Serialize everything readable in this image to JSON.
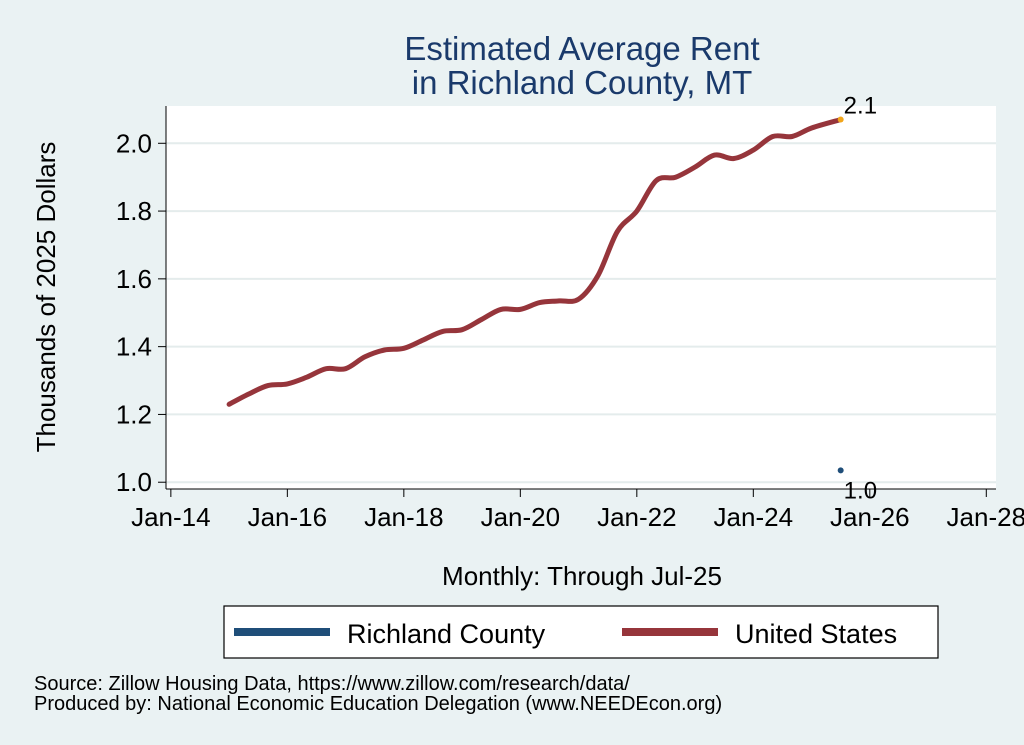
{
  "chart_data": {
    "type": "line",
    "title_lines": [
      "Estimated Average Rent",
      "in Richland County, MT"
    ],
    "xlabel": "Monthly: Through Jul-25",
    "ylabel": "Thousands of 2025 Dollars",
    "xlim": [
      "2013-12",
      "2028-03"
    ],
    "ylim": [
      0.98,
      2.11
    ],
    "x_ticks": [
      {
        "date": "2014-01",
        "label": "Jan-14"
      },
      {
        "date": "2016-01",
        "label": "Jan-16"
      },
      {
        "date": "2018-01",
        "label": "Jan-18"
      },
      {
        "date": "2020-01",
        "label": "Jan-20"
      },
      {
        "date": "2022-01",
        "label": "Jan-22"
      },
      {
        "date": "2024-01",
        "label": "Jan-24"
      },
      {
        "date": "2026-01",
        "label": "Jan-26"
      },
      {
        "date": "2028-01",
        "label": "Jan-28"
      }
    ],
    "y_ticks": [
      {
        "value": 1.0,
        "label": "1.0"
      },
      {
        "value": 1.2,
        "label": "1.2"
      },
      {
        "value": 1.4,
        "label": "1.4"
      },
      {
        "value": 1.6,
        "label": "1.6"
      },
      {
        "value": 1.8,
        "label": "1.8"
      },
      {
        "value": 2.0,
        "label": "2.0"
      }
    ],
    "grid": true,
    "legend_position": "bottom",
    "series": [
      {
        "name": "Richland County",
        "color": "#1f4e79",
        "points": [
          {
            "x": "2025-07",
            "y": 1.035
          }
        ],
        "end_label": "1.0"
      },
      {
        "name": "United States",
        "color": "#96353b",
        "end_marker_color": "#f2a51a",
        "end_label": "2.1",
        "points": [
          {
            "x": "2015-01",
            "y": 1.23
          },
          {
            "x": "2015-05",
            "y": 1.26
          },
          {
            "x": "2015-09",
            "y": 1.285
          },
          {
            "x": "2016-01",
            "y": 1.29
          },
          {
            "x": "2016-05",
            "y": 1.31
          },
          {
            "x": "2016-09",
            "y": 1.335
          },
          {
            "x": "2017-01",
            "y": 1.335
          },
          {
            "x": "2017-05",
            "y": 1.37
          },
          {
            "x": "2017-09",
            "y": 1.39
          },
          {
            "x": "2018-01",
            "y": 1.395
          },
          {
            "x": "2018-05",
            "y": 1.42
          },
          {
            "x": "2018-09",
            "y": 1.445
          },
          {
            "x": "2019-01",
            "y": 1.45
          },
          {
            "x": "2019-05",
            "y": 1.48
          },
          {
            "x": "2019-09",
            "y": 1.51
          },
          {
            "x": "2020-01",
            "y": 1.51
          },
          {
            "x": "2020-05",
            "y": 1.53
          },
          {
            "x": "2020-09",
            "y": 1.535
          },
          {
            "x": "2021-01",
            "y": 1.54
          },
          {
            "x": "2021-05",
            "y": 1.61
          },
          {
            "x": "2021-09",
            "y": 1.74
          },
          {
            "x": "2022-01",
            "y": 1.8
          },
          {
            "x": "2022-05",
            "y": 1.89
          },
          {
            "x": "2022-09",
            "y": 1.9
          },
          {
            "x": "2023-01",
            "y": 1.93
          },
          {
            "x": "2023-05",
            "y": 1.965
          },
          {
            "x": "2023-09",
            "y": 1.955
          },
          {
            "x": "2024-01",
            "y": 1.98
          },
          {
            "x": "2024-05",
            "y": 2.02
          },
          {
            "x": "2024-09",
            "y": 2.02
          },
          {
            "x": "2025-01",
            "y": 2.045
          },
          {
            "x": "2025-07",
            "y": 2.07
          }
        ]
      }
    ],
    "notes": [
      "Source: Zillow Housing Data, https://www.zillow.com/research/data/",
      "Produced by: National Economic Education Delegation (www.NEEDEcon.org)"
    ]
  }
}
